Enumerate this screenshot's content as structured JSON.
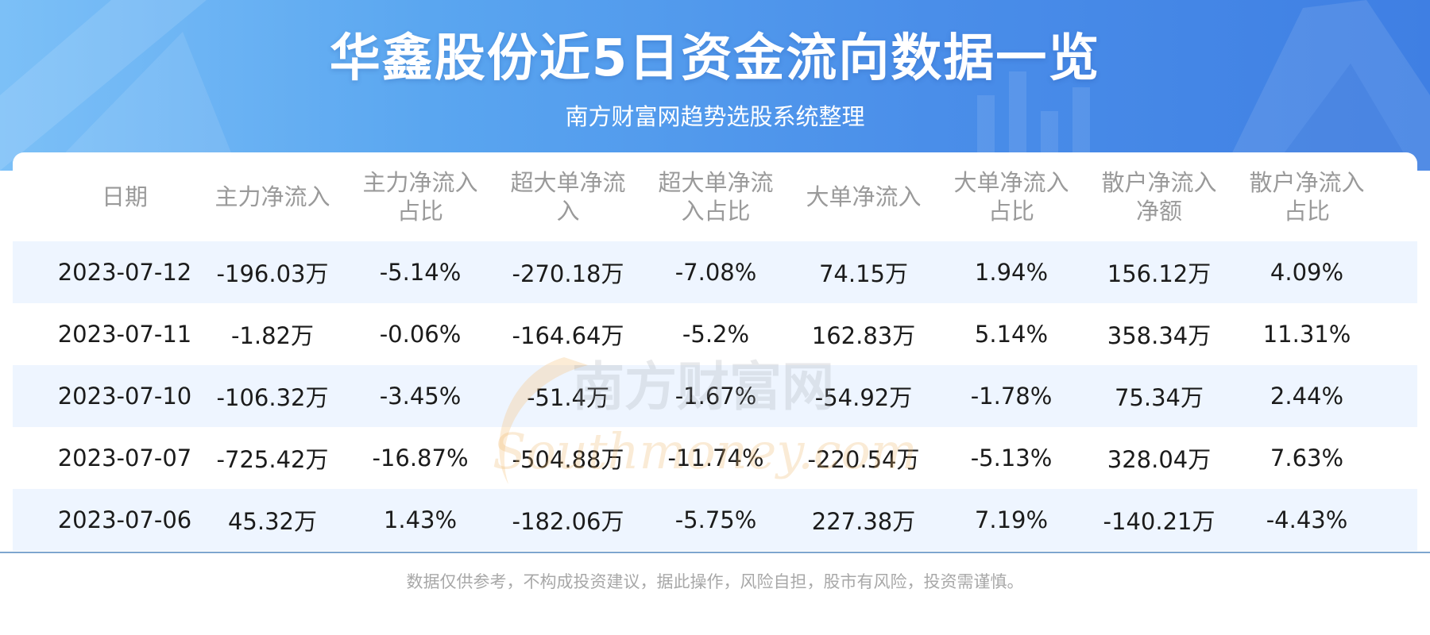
{
  "banner": {
    "title": "华鑫股份近5日资金流向数据一览",
    "subtitle": "南方财富网趋势选股系统整理"
  },
  "table": {
    "headers": [
      "日期",
      "主力净流入",
      "主力净流入占比",
      "超大单净流入",
      "超大单净流入占比",
      "大单净流入",
      "大单净流入占比",
      "散户净流入净额",
      "散户净流入占比"
    ],
    "rows": [
      [
        "2023-07-12",
        "-196.03万",
        "-5.14%",
        "-270.18万",
        "-7.08%",
        "74.15万",
        "1.94%",
        "156.12万",
        "4.09%"
      ],
      [
        "2023-07-11",
        "-1.82万",
        "-0.06%",
        "-164.64万",
        "-5.2%",
        "162.83万",
        "5.14%",
        "358.34万",
        "11.31%"
      ],
      [
        "2023-07-10",
        "-106.32万",
        "-3.45%",
        "-51.4万",
        "-1.67%",
        "-54.92万",
        "-1.78%",
        "75.34万",
        "2.44%"
      ],
      [
        "2023-07-07",
        "-725.42万",
        "-16.87%",
        "-504.88万",
        "-11.74%",
        "-220.54万",
        "-5.13%",
        "328.04万",
        "7.63%"
      ],
      [
        "2023-07-06",
        "45.32万",
        "1.43%",
        "-182.06万",
        "-5.75%",
        "227.38万",
        "7.19%",
        "-140.21万",
        "-4.43%"
      ]
    ]
  },
  "watermark": {
    "cn": "南方财富网",
    "en": "Southmoney.com"
  },
  "footer": {
    "disclaimer": "数据仅供参考，不构成投资建议，据此操作，风险自担，股市有风险，投资需谨慎。"
  },
  "colors": {
    "banner_start": "#7cc0f7",
    "banner_end": "#3f7fe3",
    "row_alt": "#eef5ff",
    "header_text": "#9a9a9a",
    "cell_text": "#1b1b1b"
  }
}
